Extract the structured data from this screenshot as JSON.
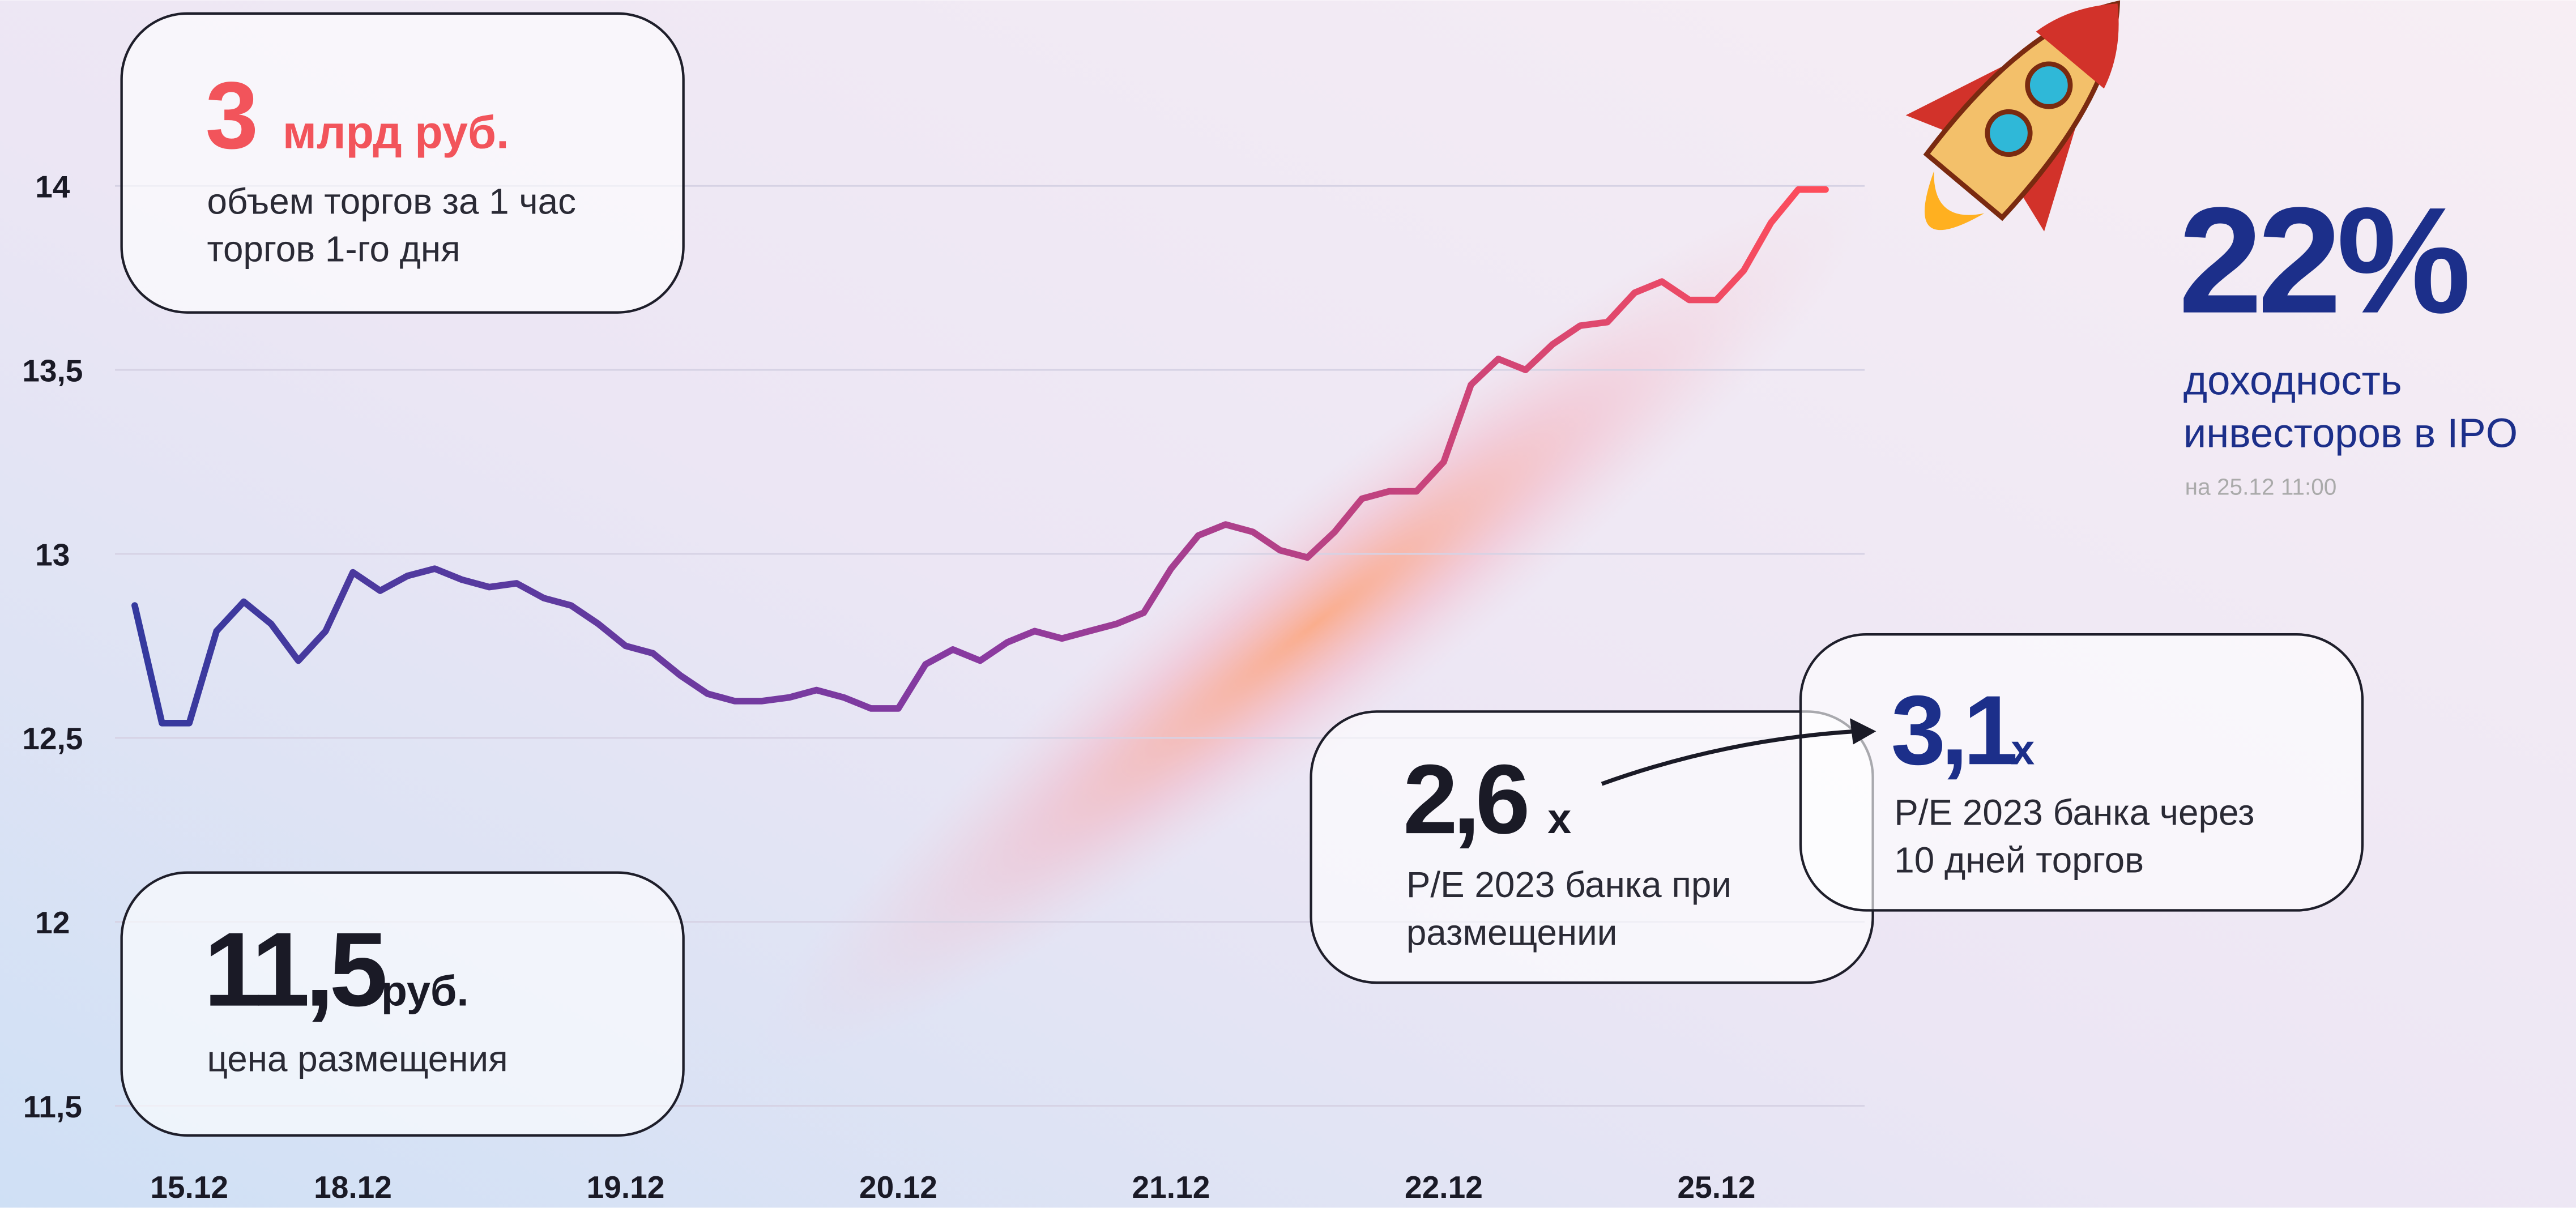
{
  "chart_data": {
    "type": "line",
    "categories": [
      null,
      null,
      "15.12",
      null,
      null,
      null,
      null,
      null,
      "18.12",
      null,
      null,
      null,
      null,
      null,
      null,
      null,
      null,
      null,
      "19.12",
      null,
      null,
      null,
      null,
      null,
      null,
      null,
      null,
      null,
      "20.12",
      null,
      null,
      null,
      null,
      null,
      null,
      null,
      null,
      null,
      "21.12",
      null,
      null,
      null,
      null,
      null,
      null,
      null,
      null,
      null,
      "22.12",
      null,
      null,
      null,
      null,
      null,
      null,
      null,
      null,
      null,
      "25.12",
      null,
      null,
      null,
      null
    ],
    "series": [
      {
        "gradient": [
          "#34399e",
          "#8a3aa0",
          "#ff4d5a"
        ],
        "values": [
          12.86,
          12.54,
          12.54,
          12.79,
          12.87,
          12.81,
          12.71,
          12.79,
          12.95,
          12.9,
          12.94,
          12.96,
          12.93,
          12.91,
          12.92,
          12.88,
          12.86,
          12.81,
          12.75,
          12.73,
          12.67,
          12.62,
          12.6,
          12.6,
          12.61,
          12.63,
          12.61,
          12.58,
          12.58,
          12.7,
          12.74,
          12.71,
          12.76,
          12.79,
          12.77,
          12.79,
          12.81,
          12.84,
          12.96,
          13.05,
          13.08,
          13.06,
          13.01,
          12.99,
          13.06,
          13.15,
          13.17,
          13.17,
          13.25,
          13.46,
          13.53,
          13.5,
          13.57,
          13.62,
          13.63,
          13.71,
          13.74,
          13.69,
          13.69,
          13.77,
          13.9,
          13.99,
          13.99
        ]
      }
    ],
    "ylim": [
      11.5,
      14
    ],
    "yticks": [
      {
        "value": 11.5,
        "label": "11,5"
      },
      12,
      {
        "value": 12.5,
        "label": "12,5"
      },
      13,
      {
        "value": 13.5,
        "label": "13,5"
      },
      14
    ],
    "grid": true
  },
  "callouts": [
    {
      "value": "3",
      "unit": "млрд руб.",
      "lines": [
        "объем торгов за 1 час",
        "торгов 1-го дня"
      ]
    },
    {
      "value": "11,5",
      "unit": "руб.",
      "lines": [
        "цена размещения"
      ]
    },
    {
      "value": "2,6",
      "unit": "x",
      "lines": [
        "P/E 2023 банка при",
        "размещении"
      ]
    },
    {
      "value": "3,1",
      "unit": "x",
      "lines": [
        "P/E 2023 банка через",
        "10 дней торгов"
      ]
    }
  ],
  "headline": {
    "value": "22%",
    "lines": [
      "доходность",
      "инвесторов в IPO"
    ],
    "note": "на 25.12 11:00"
  }
}
